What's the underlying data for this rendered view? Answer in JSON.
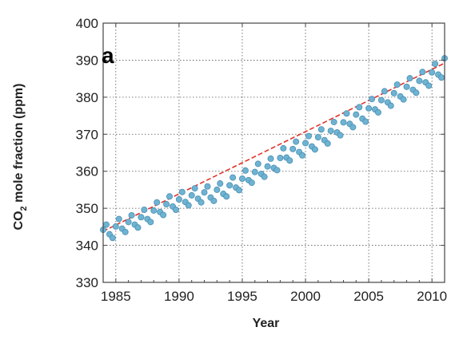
{
  "chart_data": {
    "type": "scatter",
    "panel_label": "a",
    "xlabel": "Year",
    "ylabel_main": "CO",
    "ylabel_sub": "2",
    "ylabel_rest": " mole fraction (ppm)",
    "xlim": [
      1984,
      2011
    ],
    "ylim": [
      330,
      400
    ],
    "x_ticks": [
      1985,
      1990,
      1995,
      2000,
      2005,
      2010
    ],
    "y_ticks": [
      330,
      340,
      350,
      360,
      370,
      380,
      390,
      400
    ],
    "x_tick_labels": [
      "1985",
      "1990",
      "1995",
      "2000",
      "2005",
      "2010"
    ],
    "y_tick_labels": [
      "330",
      "340",
      "350",
      "360",
      "370",
      "380",
      "390",
      "400"
    ],
    "grid": true,
    "series": [
      {
        "kind": "points",
        "color": "#6fb3d2",
        "edge_color": "#4a8fb3",
        "x": [
          1984.0,
          1984.25,
          1984.5,
          1984.75,
          1985.0,
          1985.25,
          1985.5,
          1985.75,
          1986.0,
          1986.25,
          1986.5,
          1986.75,
          1987.0,
          1987.25,
          1987.5,
          1987.75,
          1988.0,
          1988.25,
          1988.5,
          1988.75,
          1989.0,
          1989.25,
          1989.5,
          1989.75,
          1990.0,
          1990.25,
          1990.5,
          1990.75,
          1991.0,
          1991.25,
          1991.5,
          1991.75,
          1992.0,
          1992.25,
          1992.5,
          1992.75,
          1993.0,
          1993.25,
          1993.5,
          1993.75,
          1994.0,
          1994.25,
          1994.5,
          1994.75,
          1995.0,
          1995.25,
          1995.5,
          1995.75,
          1996.0,
          1996.25,
          1996.5,
          1996.75,
          1997.0,
          1997.25,
          1997.5,
          1997.75,
          1998.0,
          1998.25,
          1998.5,
          1998.75,
          1999.0,
          1999.25,
          1999.5,
          1999.75,
          2000.0,
          2000.25,
          2000.5,
          2000.75,
          2001.0,
          2001.25,
          2001.5,
          2001.75,
          2002.0,
          2002.25,
          2002.5,
          2002.75,
          2003.0,
          2003.25,
          2003.5,
          2003.75,
          2004.0,
          2004.25,
          2004.5,
          2004.75,
          2005.0,
          2005.25,
          2005.5,
          2005.75,
          2006.0,
          2006.25,
          2006.5,
          2006.75,
          2007.0,
          2007.25,
          2007.5,
          2007.75,
          2008.0,
          2008.25,
          2008.5,
          2008.75,
          2009.0,
          2009.25,
          2009.5,
          2009.75,
          2010.0,
          2010.25,
          2010.5,
          2010.75,
          2011.0
        ],
        "y": [
          344.2,
          345.6,
          343.0,
          342.0,
          345.1,
          347.1,
          344.5,
          343.6,
          346.3,
          348.1,
          345.6,
          344.8,
          347.6,
          349.6,
          347.1,
          346.3,
          349.4,
          351.6,
          349.0,
          348.2,
          351.1,
          353.2,
          350.5,
          349.6,
          352.4,
          354.4,
          351.7,
          350.8,
          353.5,
          355.4,
          352.6,
          351.6,
          354.3,
          355.9,
          352.9,
          352.0,
          355.0,
          356.7,
          353.9,
          353.2,
          356.2,
          358.3,
          355.6,
          354.9,
          358.0,
          360.2,
          357.6,
          356.9,
          359.8,
          362.0,
          359.3,
          358.5,
          361.3,
          363.4,
          360.9,
          360.3,
          363.6,
          366.2,
          363.7,
          362.9,
          366.0,
          368.0,
          365.2,
          364.3,
          367.6,
          369.5,
          366.7,
          365.9,
          369.2,
          371.3,
          368.4,
          367.5,
          370.9,
          373.3,
          370.5,
          369.7,
          373.2,
          375.6,
          372.8,
          371.9,
          375.3,
          377.3,
          374.2,
          373.4,
          377.0,
          379.5,
          376.7,
          375.9,
          379.2,
          381.6,
          378.6,
          377.7,
          381.1,
          383.4,
          380.2,
          379.4,
          382.8,
          385.1,
          382.0,
          381.2,
          384.4,
          386.8,
          384.0,
          383.1,
          386.7,
          389.0,
          386.1,
          385.3,
          390.5
        ]
      },
      {
        "kind": "trend-line",
        "color": "#e0342b",
        "x": [
          1984,
          2011
        ],
        "y": [
          343.8,
          389.2
        ]
      }
    ]
  }
}
